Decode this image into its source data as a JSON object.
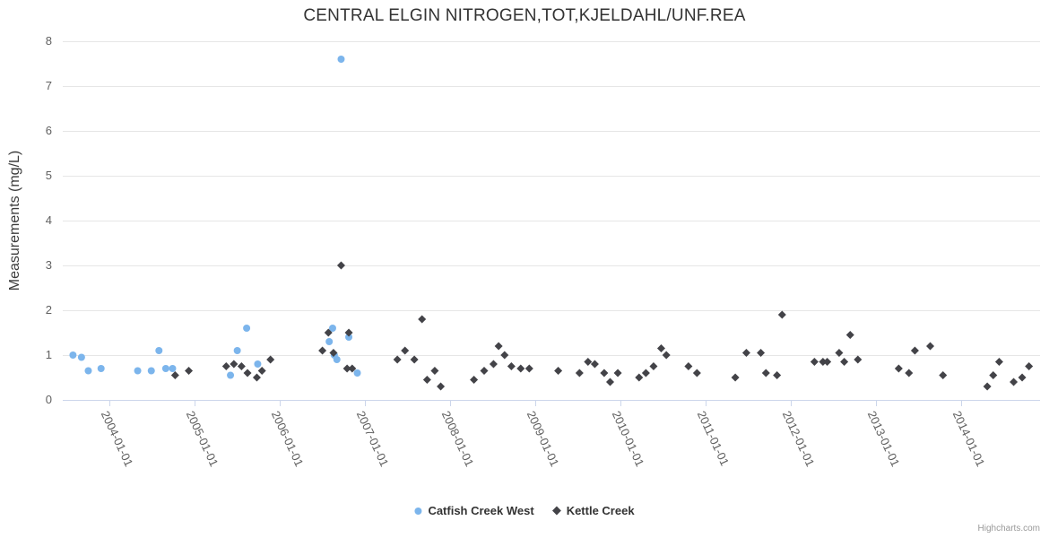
{
  "credit": "Highcharts.com",
  "chart_data": {
    "type": "scatter",
    "title": "CENTRAL ELGIN NITROGEN,TOT,KJELDAHL/UNF.REA",
    "xlabel": "",
    "ylabel": "Measurements (mg/L)",
    "ylim": [
      0,
      8
    ],
    "yticks": [
      0,
      1,
      2,
      3,
      4,
      5,
      6,
      7,
      8
    ],
    "xlim_years": [
      2003.45,
      2014.93
    ],
    "xticks": [
      {
        "year": 2004,
        "label": "2004-01-01"
      },
      {
        "year": 2005,
        "label": "2005-01-01"
      },
      {
        "year": 2006,
        "label": "2006-01-01"
      },
      {
        "year": 2007,
        "label": "2007-01-01"
      },
      {
        "year": 2008,
        "label": "2008-01-01"
      },
      {
        "year": 2009,
        "label": "2009-01-01"
      },
      {
        "year": 2010,
        "label": "2010-01-01"
      },
      {
        "year": 2011,
        "label": "2011-01-01"
      },
      {
        "year": 2012,
        "label": "2012-01-01"
      },
      {
        "year": 2013,
        "label": "2013-01-01"
      },
      {
        "year": 2014,
        "label": "2014-01-01"
      }
    ],
    "grid": true,
    "legend_position": "bottom-center",
    "series": [
      {
        "name": "Catfish Creek West",
        "color": "#7CB5EC",
        "marker": "circle",
        "points": [
          [
            2003.57,
            1.0
          ],
          [
            2003.67,
            0.95
          ],
          [
            2003.75,
            0.65
          ],
          [
            2003.9,
            0.7
          ],
          [
            2004.33,
            0.65
          ],
          [
            2004.49,
            0.65
          ],
          [
            2004.58,
            1.1
          ],
          [
            2004.66,
            0.7
          ],
          [
            2004.74,
            0.7
          ],
          [
            2005.42,
            0.55
          ],
          [
            2005.5,
            1.1
          ],
          [
            2005.61,
            1.6
          ],
          [
            2005.74,
            0.8
          ],
          [
            2006.58,
            1.3
          ],
          [
            2006.62,
            1.6
          ],
          [
            2006.64,
            1.0
          ],
          [
            2006.67,
            0.9
          ],
          [
            2006.72,
            7.6
          ],
          [
            2006.81,
            1.4
          ],
          [
            2006.91,
            0.6
          ]
        ]
      },
      {
        "name": "Kettle Creek",
        "color": "#434348",
        "marker": "diamond",
        "points": [
          [
            2004.77,
            0.55
          ],
          [
            2004.93,
            0.65
          ],
          [
            2005.37,
            0.75
          ],
          [
            2005.46,
            0.8
          ],
          [
            2005.55,
            0.75
          ],
          [
            2005.62,
            0.6
          ],
          [
            2005.73,
            0.5
          ],
          [
            2005.79,
            0.65
          ],
          [
            2005.89,
            0.9
          ],
          [
            2006.5,
            1.1
          ],
          [
            2006.57,
            1.5
          ],
          [
            2006.63,
            1.05
          ],
          [
            2006.72,
            3.0
          ],
          [
            2006.79,
            0.7
          ],
          [
            2006.81,
            1.5
          ],
          [
            2006.85,
            0.7
          ],
          [
            2007.38,
            0.9
          ],
          [
            2007.47,
            1.1
          ],
          [
            2007.58,
            0.9
          ],
          [
            2007.67,
            1.8
          ],
          [
            2007.73,
            0.45
          ],
          [
            2007.82,
            0.65
          ],
          [
            2007.89,
            0.3
          ],
          [
            2008.28,
            0.45
          ],
          [
            2008.4,
            0.65
          ],
          [
            2008.51,
            0.8
          ],
          [
            2008.57,
            1.2
          ],
          [
            2008.64,
            1.0
          ],
          [
            2008.72,
            0.75
          ],
          [
            2008.83,
            0.7
          ],
          [
            2008.93,
            0.7
          ],
          [
            2009.27,
            0.65
          ],
          [
            2009.52,
            0.6
          ],
          [
            2009.62,
            0.85
          ],
          [
            2009.7,
            0.8
          ],
          [
            2009.81,
            0.6
          ],
          [
            2009.88,
            0.4
          ],
          [
            2009.97,
            0.6
          ],
          [
            2010.22,
            0.5
          ],
          [
            2010.3,
            0.6
          ],
          [
            2010.39,
            0.75
          ],
          [
            2010.48,
            1.15
          ],
          [
            2010.54,
            1.0
          ],
          [
            2010.8,
            0.75
          ],
          [
            2010.9,
            0.6
          ],
          [
            2011.35,
            0.5
          ],
          [
            2011.48,
            1.05
          ],
          [
            2011.65,
            1.05
          ],
          [
            2011.71,
            0.6
          ],
          [
            2011.84,
            0.55
          ],
          [
            2011.9,
            1.9
          ],
          [
            2012.28,
            0.85
          ],
          [
            2012.38,
            0.85
          ],
          [
            2012.43,
            0.85
          ],
          [
            2012.57,
            1.05
          ],
          [
            2012.63,
            0.85
          ],
          [
            2012.7,
            1.45
          ],
          [
            2012.79,
            0.9
          ],
          [
            2013.27,
            0.7
          ],
          [
            2013.39,
            0.6
          ],
          [
            2013.46,
            1.1
          ],
          [
            2013.64,
            1.2
          ],
          [
            2013.79,
            0.55
          ],
          [
            2014.31,
            0.3
          ],
          [
            2014.38,
            0.55
          ],
          [
            2014.45,
            0.85
          ],
          [
            2014.62,
            0.4
          ],
          [
            2014.72,
            0.5
          ],
          [
            2014.8,
            0.75
          ]
        ]
      }
    ]
  }
}
